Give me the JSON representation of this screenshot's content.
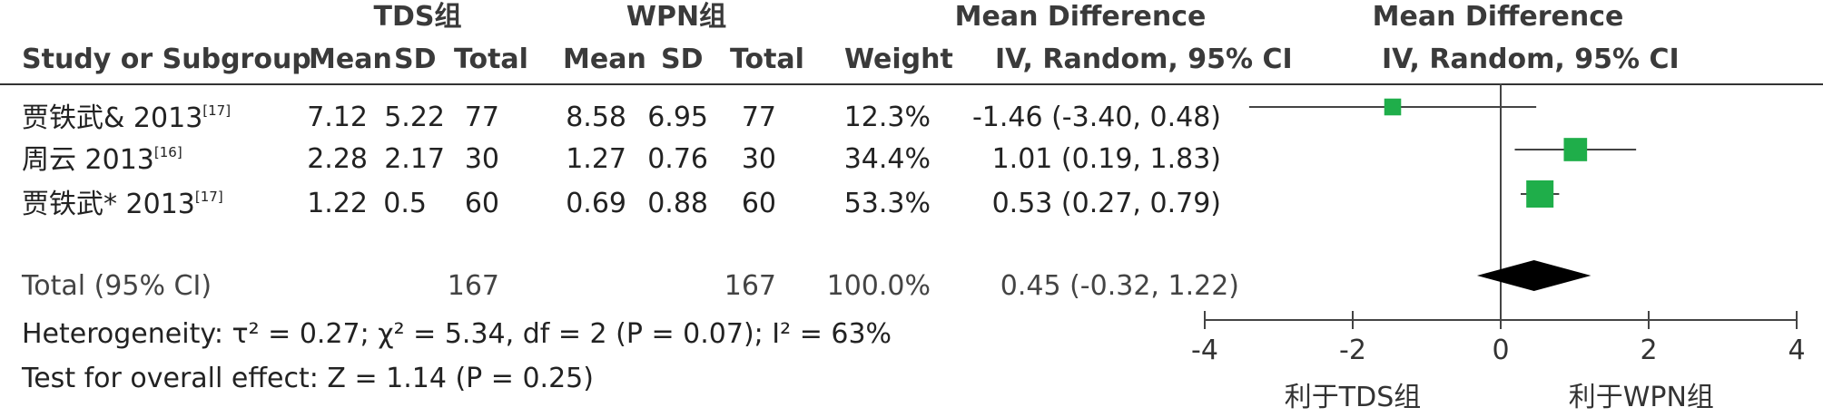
{
  "header": {
    "group1": "TDS组",
    "group2": "WPN组",
    "md_left": "Mean Difference",
    "md_right": "Mean Difference",
    "study_col": "Study or Subgroup",
    "mean1": "Mean",
    "sd1": "SD",
    "total1": "Total",
    "mean2": "Mean",
    "sd2": "SD",
    "total2": "Total",
    "weight": "Weight",
    "ci_left": "IV, Random, 95% CI",
    "ci_right": "IV, Random, 95% CI"
  },
  "studies": [
    {
      "name": "贾铁武& 2013",
      "ref": "[17]",
      "mean1": "7.12",
      "sd1": "5.22",
      "total1": "77",
      "mean2": "8.58",
      "sd2": "6.95",
      "total2": "77",
      "weight": "12.3%",
      "ci_text": "-1.46 (-3.40, 0.48)"
    },
    {
      "name": "周云 2013",
      "ref": "[16]",
      "mean1": "2.28",
      "sd1": "2.17",
      "total1": "30",
      "mean2": "1.27",
      "sd2": "0.76",
      "total2": "30",
      "weight": "34.4%",
      "ci_text": "1.01 (0.19, 1.83)"
    },
    {
      "name": "贾铁武* 2013",
      "ref": "[17]",
      "mean1": "1.22",
      "sd1": "0.5",
      "total1": "60",
      "mean2": "0.69",
      "sd2": "0.88",
      "total2": "60",
      "weight": "53.3%",
      "ci_text": "0.53 (0.27, 0.79)"
    }
  ],
  "total": {
    "label": "Total (95% CI)",
    "total1": "167",
    "total2": "167",
    "weight": "100.0%",
    "ci_text": "0.45 (-0.32, 1.22)"
  },
  "footer": {
    "heterogeneity": "Heterogeneity: τ² = 0.27; χ² = 5.34, df = 2 (P = 0.07); I² = 63%",
    "overall": "Test for overall effect: Z = 1.14 (P = 0.25)"
  },
  "chart_data": {
    "type": "scatter",
    "subtype": "forest-plot",
    "title": "",
    "xlabel": "",
    "ylabel": "",
    "xlim": [
      -4,
      4
    ],
    "x_ticks": [
      "-4",
      "-2",
      "0",
      "2",
      "4"
    ],
    "favours_left": "利于TDS组",
    "favours_right": "利于WPN组",
    "series": [
      {
        "name": "贾铁武& 2013",
        "estimate": -1.46,
        "ci": [
          -3.4,
          0.48
        ],
        "weight": 12.3
      },
      {
        "name": "周云 2013",
        "estimate": 1.01,
        "ci": [
          0.19,
          1.83
        ],
        "weight": 34.4
      },
      {
        "name": "贾铁武* 2013",
        "estimate": 0.53,
        "ci": [
          0.27,
          0.79
        ],
        "weight": 53.3
      }
    ],
    "pooled": {
      "estimate": 0.45,
      "ci": [
        -0.32,
        1.22
      ]
    },
    "colors": {
      "square": "#1fae4a",
      "diamond": "#000000",
      "line": "#444444"
    }
  }
}
